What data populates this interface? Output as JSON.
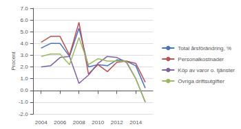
{
  "chart_data": {
    "type": "line",
    "ylabel": "Procent",
    "x": [
      2004,
      2005,
      2006,
      2007,
      2008,
      2009,
      2010,
      2011,
      2012,
      2013,
      2014,
      2015
    ],
    "series": [
      {
        "name": "Total årsförändring, %",
        "color": "#4472c4",
        "values": [
          3.6,
          4.0,
          4.0,
          2.9,
          5.3,
          2.0,
          2.2,
          2.1,
          2.6,
          2.5,
          2.1,
          0.2
        ]
      },
      {
        "name": "Personalkostnader",
        "color": "#c0504d",
        "values": [
          4.1,
          4.6,
          4.6,
          3.0,
          5.8,
          1.4,
          2.2,
          1.6,
          2.4,
          2.5,
          2.3,
          0.7
        ]
      },
      {
        "name": "Köp av varor o. tjänster",
        "color": "#7f5fa8",
        "values": [
          2.0,
          2.1,
          2.8,
          2.9,
          0.6,
          1.3,
          2.3,
          2.9,
          2.8,
          2.4,
          1.0,
          -1.0
        ]
      },
      {
        "name": "Övriga driftsutgifter",
        "color": "#9bbb59",
        "values": [
          2.9,
          3.1,
          3.1,
          2.2,
          4.5,
          2.2,
          2.7,
          2.5,
          2.5,
          2.5,
          1.0,
          -1.0
        ]
      }
    ],
    "xlim": [
      2003.2,
      2015.8
    ],
    "xticks": [
      2004,
      2006,
      2008,
      2010,
      2012,
      2014
    ],
    "ylim": [
      -2.0,
      7.0
    ],
    "yticks": [
      {
        "value": -2.0,
        "label": "-2.0"
      },
      {
        "value": -1.0,
        "label": "-1.0"
      },
      {
        "value": 0.0,
        "label": "0.0"
      },
      {
        "value": 1.0,
        "label": "1.0"
      },
      {
        "value": 2.0,
        "label": "2.0"
      },
      {
        "value": 3.0,
        "label": "3.0"
      },
      {
        "value": 4.0,
        "label": "4.0"
      },
      {
        "value": 5.0,
        "label": "5.0"
      },
      {
        "value": 6.0,
        "label": "6.0"
      },
      {
        "value": 7.0,
        "label": "7.0"
      }
    ],
    "grid": "y",
    "legend": "right"
  }
}
